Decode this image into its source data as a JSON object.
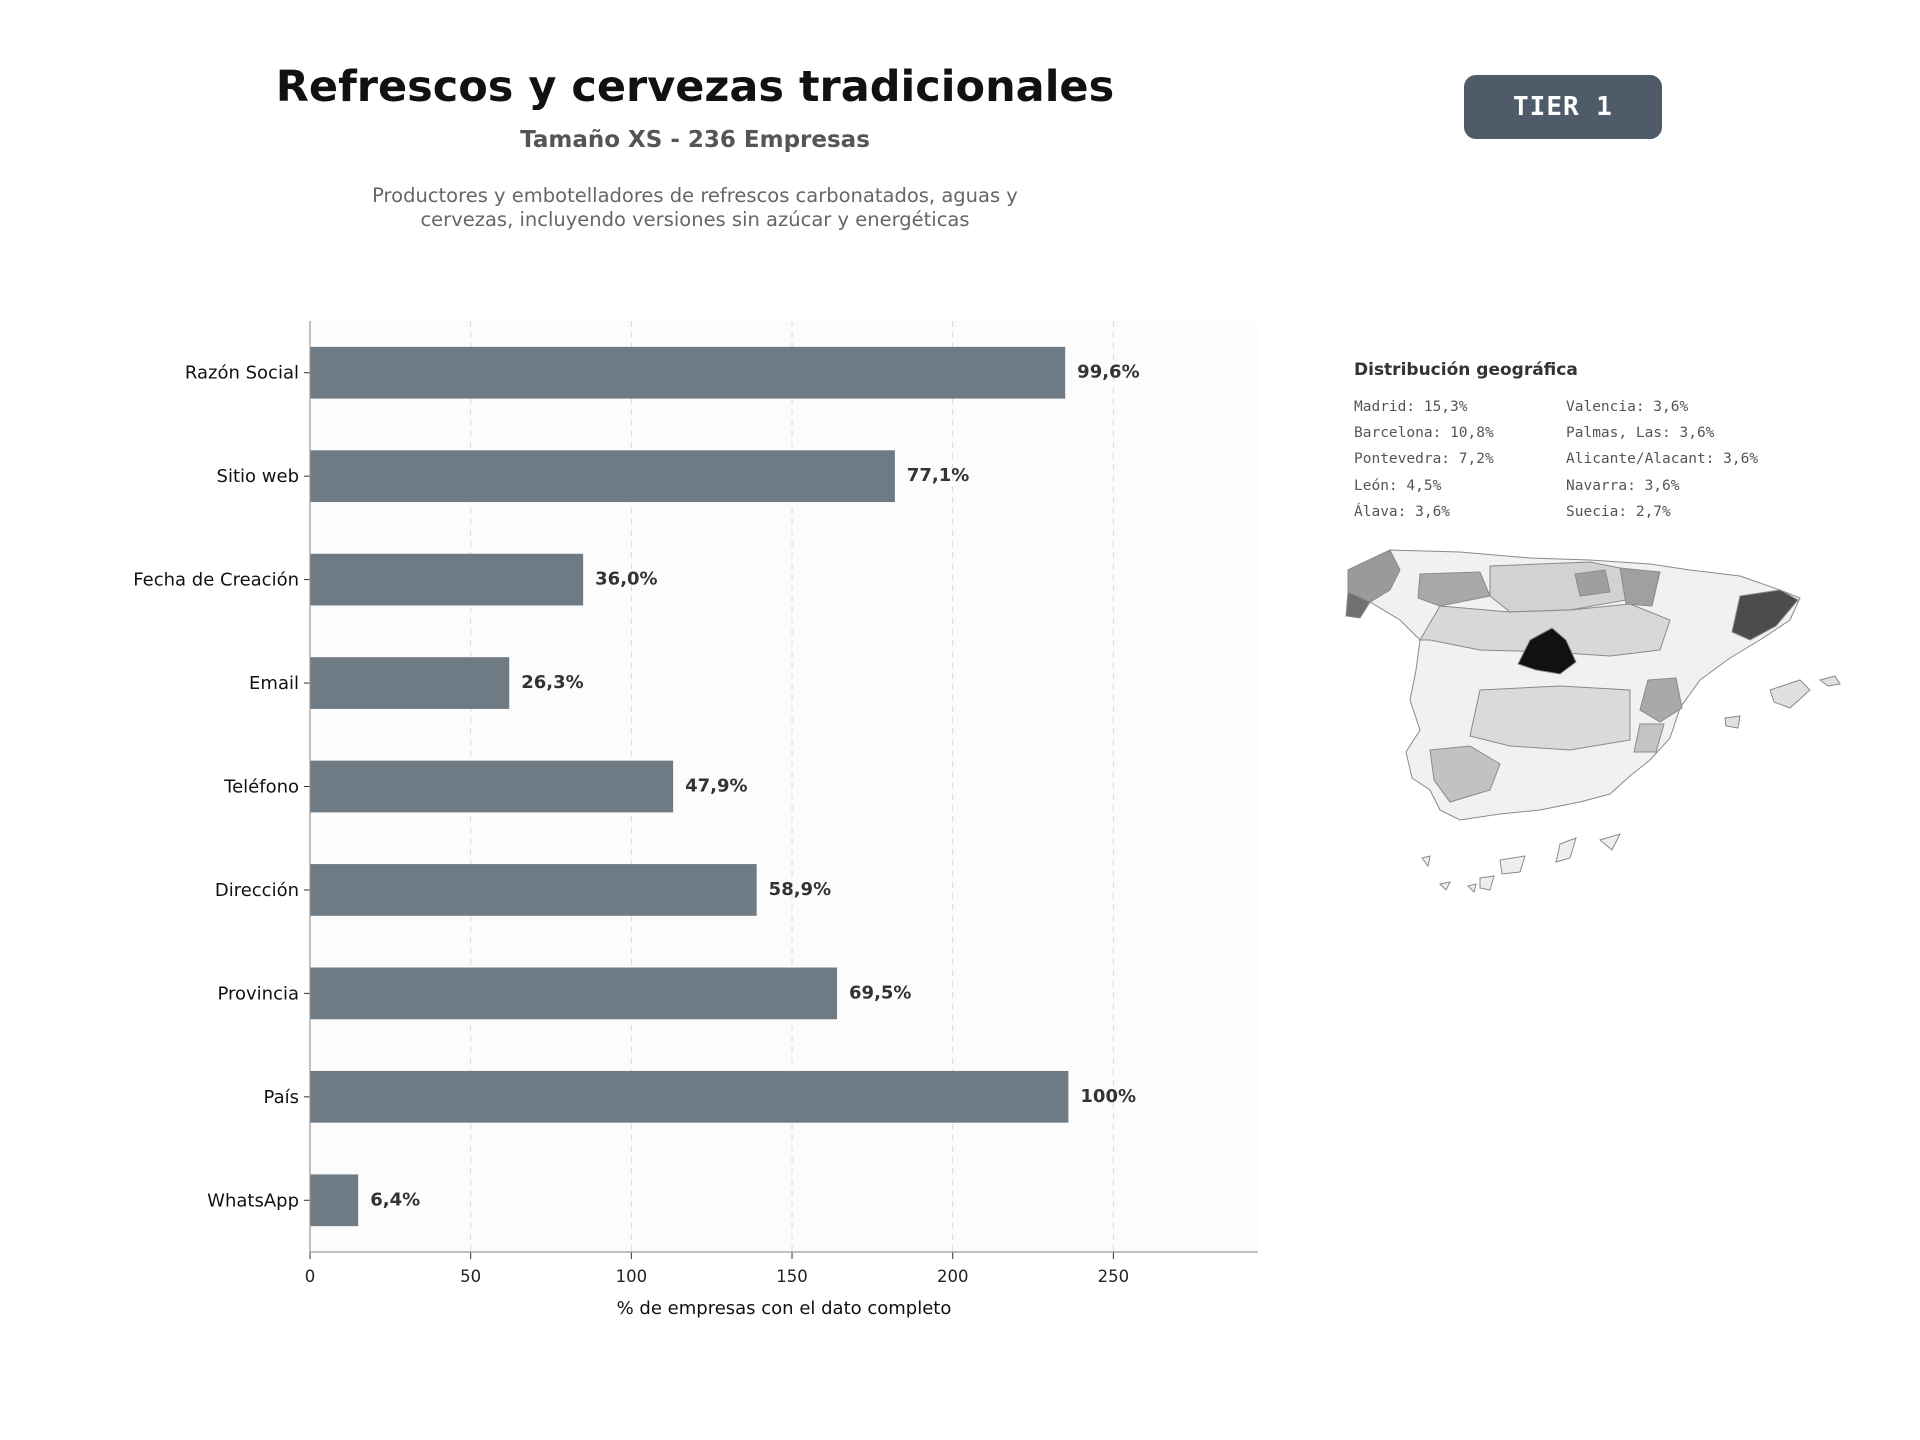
{
  "header": {
    "title": "Refrescos y cervezas tradicionales",
    "subtitle": "Tamaño XS - 236 Empresas",
    "description_line1": "Productores y embotelladores de refrescos carbonatados, aguas y",
    "description_line2": "cervezas, incluyendo versiones sin azúcar y energéticas",
    "tier": "TIER 1"
  },
  "colors": {
    "bar": "#6e7a84",
    "badge": "#4f5b69",
    "grid": "#d9d9d9",
    "plot_bg": "#fcfcfc"
  },
  "chart_data": {
    "type": "bar",
    "orientation": "horizontal",
    "categories": [
      "Razón Social",
      "Sitio web",
      "Fecha de Creación",
      "Email",
      "Teléfono",
      "Dirección",
      "Provincia",
      "País",
      "WhatsApp"
    ],
    "values": [
      235,
      182,
      85,
      62,
      113,
      139,
      164,
      236,
      15
    ],
    "data_labels": [
      "99,6%",
      "77,1%",
      "36,0%",
      "26,3%",
      "47,9%",
      "58,9%",
      "69,5%",
      "100%",
      "6,4%"
    ],
    "xlabel": "% de empresas con el dato completo",
    "ylabel": "",
    "xlim": [
      0,
      295
    ],
    "xticks": [
      0,
      50,
      100,
      150,
      200,
      250
    ],
    "grid": "vertical dashed"
  },
  "geo": {
    "title": "Distribución geográfica",
    "left": [
      "Madrid: 15,3%",
      "Barcelona: 10,8%",
      "Pontevedra: 7,2%",
      "León: 4,5%",
      "Álava: 3,6%"
    ],
    "right": [
      "Valencia: 3,6%",
      "Palmas, Las: 3,6%",
      "Alicante/Alacant: 3,6%",
      "Navarra: 3,6%",
      "Suecia: 2,7%"
    ]
  }
}
